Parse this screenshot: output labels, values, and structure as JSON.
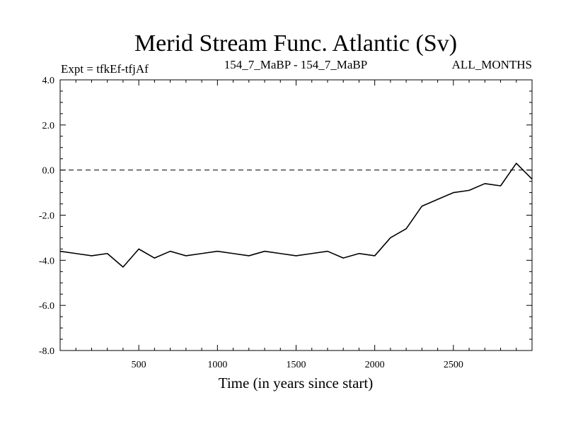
{
  "chart_data": {
    "type": "line",
    "title": "Merid Stream Func. Atlantic (Sv)",
    "subtitle_left": "Expt = tfkEf-tfjAf",
    "subtitle_center": "154_7_MaBP - 154_7_MaBP",
    "subtitle_right": "ALL_MONTHS",
    "xlabel": "Time (in years since start)",
    "ylabel": "",
    "xlim": [
      0,
      3000
    ],
    "ylim": [
      -8.0,
      4.0
    ],
    "x_ticks": [
      500,
      1000,
      1500,
      2000,
      2500
    ],
    "x_tick_labels": [
      "500",
      "1000",
      "1500",
      "2000",
      "2500"
    ],
    "y_ticks": [
      4.0,
      2.0,
      0.0,
      -2.0,
      -4.0,
      -6.0,
      -8.0
    ],
    "y_tick_labels": [
      "4.0",
      "2.0",
      "0.0",
      "-2.0",
      "-4.0",
      "-6.0",
      "-8.0"
    ],
    "reference_line": {
      "y": 0.0,
      "style": "dashed"
    },
    "grid": false,
    "line_color": "#000000",
    "series": [
      {
        "x": [
          0,
          100,
          200,
          300,
          400,
          500,
          600,
          700,
          800,
          900,
          1000,
          1100,
          1200,
          1300,
          1400,
          1500,
          1600,
          1700,
          1800,
          1900,
          2000,
          2100,
          2200,
          2300,
          2400,
          2500,
          2600,
          2700,
          2800,
          2900,
          3000
        ],
        "values": [
          -3.6,
          -3.7,
          -3.8,
          -3.7,
          -4.3,
          -3.5,
          -3.9,
          -3.6,
          -3.8,
          -3.7,
          -3.6,
          -3.7,
          -3.8,
          -3.6,
          -3.7,
          -3.8,
          -3.7,
          -3.6,
          -3.9,
          -3.7,
          -3.8,
          -3.0,
          -2.6,
          -1.6,
          -1.3,
          -1.0,
          -0.9,
          -0.6,
          -0.7,
          0.3,
          -0.4
        ]
      }
    ]
  }
}
